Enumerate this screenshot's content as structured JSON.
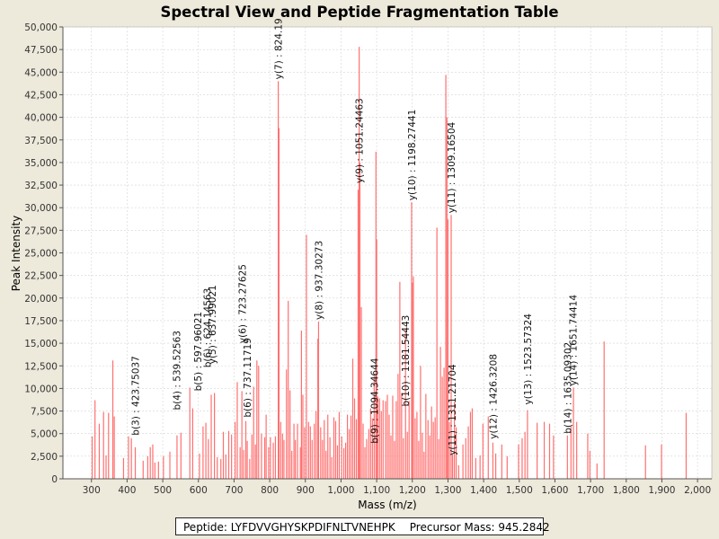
{
  "chart_data": {
    "type": "bar",
    "title": "Spectral View and Peptide Fragmentation Table",
    "xlabel": "Mass (m/z)",
    "ylabel": "Peak Intensity",
    "xlim": [
      220,
      2040
    ],
    "ylim": [
      0,
      50000
    ],
    "x_ticks": [
      300,
      400,
      500,
      600,
      700,
      800,
      900,
      1000,
      1100,
      1200,
      1300,
      1400,
      1500,
      1600,
      1700,
      1800,
      1900,
      2000
    ],
    "x_tick_labels": [
      "300",
      "400",
      "500",
      "600",
      "700",
      "800",
      "900",
      "1,000",
      "1,100",
      "1,200",
      "1,300",
      "1,400",
      "1,500",
      "1,600",
      "1,700",
      "1,800",
      "1,900",
      "2,000"
    ],
    "y_ticks": [
      0,
      2500,
      5000,
      7500,
      10000,
      12500,
      15000,
      17500,
      20000,
      22500,
      25000,
      27500,
      30000,
      32500,
      35000,
      37500,
      40000,
      42500,
      45000,
      47500,
      50000
    ],
    "y_tick_labels": [
      "0",
      "2,500",
      "5,000",
      "7,500",
      "10,000",
      "12,500",
      "15,000",
      "17,500",
      "20,000",
      "22,500",
      "25,000",
      "27,500",
      "30,000",
      "32,500",
      "35,000",
      "37,500",
      "40,000",
      "42,500",
      "45,000",
      "47,500",
      "50,000"
    ],
    "grid": true,
    "series": [
      {
        "name": "Peaks",
        "color": "#ff7070",
        "points": [
          [
            302,
            4700
          ],
          [
            310,
            8700
          ],
          [
            322,
            6100
          ],
          [
            334,
            7400
          ],
          [
            341,
            2600
          ],
          [
            348,
            7300
          ],
          [
            360,
            13100
          ],
          [
            364,
            6900
          ],
          [
            390,
            2300
          ],
          [
            404,
            4700
          ],
          [
            412,
            4500
          ],
          [
            423,
            3500
          ],
          [
            445,
            2000
          ],
          [
            458,
            2500
          ],
          [
            465,
            3500
          ],
          [
            472,
            3800
          ],
          [
            478,
            1800
          ],
          [
            488,
            1900
          ],
          [
            502,
            2500
          ],
          [
            520,
            3000
          ],
          [
            540,
            4800
          ],
          [
            551,
            5100
          ],
          [
            576,
            10100
          ],
          [
            584,
            7800
          ],
          [
            603,
            2800
          ],
          [
            613,
            5800
          ],
          [
            621,
            6200
          ],
          [
            628,
            4400
          ],
          [
            636,
            9300
          ],
          [
            645,
            9500
          ],
          [
            653,
            2400
          ],
          [
            663,
            2200
          ],
          [
            670,
            5200
          ],
          [
            677,
            2700
          ],
          [
            685,
            5300
          ],
          [
            693,
            4900
          ],
          [
            703,
            6300
          ],
          [
            709,
            10700
          ],
          [
            717,
            3500
          ],
          [
            722,
            9700
          ],
          [
            727,
            3200
          ],
          [
            733,
            6400
          ],
          [
            737,
            4200
          ],
          [
            744,
            2200
          ],
          [
            750,
            4900
          ],
          [
            755,
            10200
          ],
          [
            760,
            3800
          ],
          [
            764,
            13100
          ],
          [
            769,
            12500
          ],
          [
            777,
            5000
          ],
          [
            786,
            4600
          ],
          [
            790,
            7100
          ],
          [
            797,
            3500
          ],
          [
            802,
            4600
          ],
          [
            810,
            4000
          ],
          [
            816,
            4700
          ],
          [
            824,
            44000
          ],
          [
            826,
            38800
          ],
          [
            831,
            6300
          ],
          [
            836,
            5000
          ],
          [
            840,
            4300
          ],
          [
            847,
            12100
          ],
          [
            852,
            19700
          ],
          [
            857,
            9800
          ],
          [
            862,
            3100
          ],
          [
            868,
            6100
          ],
          [
            872,
            4300
          ],
          [
            878,
            6100
          ],
          [
            886,
            3500
          ],
          [
            889,
            16400
          ],
          [
            893,
            9300
          ],
          [
            898,
            5700
          ],
          [
            903,
            27000
          ],
          [
            909,
            6300
          ],
          [
            914,
            5800
          ],
          [
            919,
            4300
          ],
          [
            925,
            6100
          ],
          [
            930,
            7500
          ],
          [
            935,
            15500
          ],
          [
            937,
            17400
          ],
          [
            943,
            5700
          ],
          [
            948,
            4300
          ],
          [
            953,
            6500
          ],
          [
            958,
            3100
          ],
          [
            963,
            7100
          ],
          [
            969,
            4600
          ],
          [
            974,
            2400
          ],
          [
            980,
            6800
          ],
          [
            985,
            6400
          ],
          [
            990,
            3700
          ],
          [
            995,
            7400
          ],
          [
            1002,
            4700
          ],
          [
            1008,
            3400
          ],
          [
            1013,
            4000
          ],
          [
            1018,
            7100
          ],
          [
            1023,
            5500
          ],
          [
            1028,
            7000
          ],
          [
            1033,
            13300
          ],
          [
            1038,
            8900
          ],
          [
            1043,
            6600
          ],
          [
            1048,
            32000
          ],
          [
            1051,
            47800
          ],
          [
            1053,
            35000
          ],
          [
            1057,
            19000
          ],
          [
            1062,
            6100
          ],
          [
            1067,
            3500
          ],
          [
            1072,
            4400
          ],
          [
            1078,
            5500
          ],
          [
            1083,
            7800
          ],
          [
            1088,
            6700
          ],
          [
            1093,
            11400
          ],
          [
            1098,
            36200
          ],
          [
            1100,
            26500
          ],
          [
            1103,
            9100
          ],
          [
            1108,
            8900
          ],
          [
            1113,
            7500
          ],
          [
            1118,
            8700
          ],
          [
            1125,
            8600
          ],
          [
            1130,
            9300
          ],
          [
            1135,
            7100
          ],
          [
            1140,
            4800
          ],
          [
            1145,
            9200
          ],
          [
            1150,
            4200
          ],
          [
            1155,
            8600
          ],
          [
            1160,
            11600
          ],
          [
            1165,
            21800
          ],
          [
            1170,
            9500
          ],
          [
            1175,
            4500
          ],
          [
            1181,
            16600
          ],
          [
            1186,
            5200
          ],
          [
            1191,
            8600
          ],
          [
            1198,
            30600
          ],
          [
            1200,
            21700
          ],
          [
            1203,
            22400
          ],
          [
            1208,
            6700
          ],
          [
            1213,
            7400
          ],
          [
            1218,
            4200
          ],
          [
            1223,
            12500
          ],
          [
            1228,
            5100
          ],
          [
            1233,
            3000
          ],
          [
            1238,
            9400
          ],
          [
            1244,
            6500
          ],
          [
            1249,
            4800
          ],
          [
            1254,
            8000
          ],
          [
            1259,
            6300
          ],
          [
            1264,
            6800
          ],
          [
            1269,
            27800
          ],
          [
            1274,
            4400
          ],
          [
            1279,
            14600
          ],
          [
            1284,
            11300
          ],
          [
            1289,
            12300
          ],
          [
            1294,
            44700
          ],
          [
            1297,
            40000
          ],
          [
            1300,
            28700
          ],
          [
            1304,
            6300
          ],
          [
            1309,
            29200
          ],
          [
            1313,
            2700
          ],
          [
            1318,
            8500
          ],
          [
            1323,
            5700
          ],
          [
            1330,
            1500
          ],
          [
            1342,
            3800
          ],
          [
            1350,
            4500
          ],
          [
            1357,
            5800
          ],
          [
            1363,
            7400
          ],
          [
            1368,
            7800
          ],
          [
            1378,
            2300
          ],
          [
            1390,
            2600
          ],
          [
            1398,
            6100
          ],
          [
            1413,
            6900
          ],
          [
            1426,
            4000
          ],
          [
            1434,
            2800
          ],
          [
            1451,
            3800
          ],
          [
            1466,
            2500
          ],
          [
            1498,
            3800
          ],
          [
            1508,
            4500
          ],
          [
            1516,
            5200
          ],
          [
            1523,
            7600
          ],
          [
            1550,
            6200
          ],
          [
            1570,
            6300
          ],
          [
            1585,
            6100
          ],
          [
            1596,
            4800
          ],
          [
            1635,
            4800
          ],
          [
            1645,
            5800
          ],
          [
            1652,
            10100
          ],
          [
            1661,
            6300
          ],
          [
            1692,
            5000
          ],
          [
            1698,
            3100
          ],
          [
            1718,
            1700
          ],
          [
            1738,
            15200
          ],
          [
            1854,
            3700
          ],
          [
            1899,
            3800
          ],
          [
            1968,
            7300
          ]
        ]
      }
    ],
    "annotations": [
      {
        "label": "y(7) : 824.19",
        "x": 824,
        "y": 44000
      },
      {
        "label": "y(9) : 1051.24463",
        "x": 1051,
        "y": 32500
      },
      {
        "label": "y(10) : 1198.27441",
        "x": 1198,
        "y": 30600
      },
      {
        "label": "y(11) : 1309.16504",
        "x": 1309,
        "y": 29200
      },
      {
        "label": "y(8) : 937.30273",
        "x": 937,
        "y": 17400
      },
      {
        "label": "y(6) : 723.27625",
        "x": 723,
        "y": 14800
      },
      {
        "label": "b(6) : 624.14563",
        "x": 624,
        "y": 12100
      },
      {
        "label": "y(5) : 637.99021",
        "x": 638,
        "y": 12500
      },
      {
        "label": "b(5) : 597.96021",
        "x": 598,
        "y": 9500
      },
      {
        "label": "b(3) : 423.75037",
        "x": 423,
        "y": 4600
      },
      {
        "label": "b(4) : 539.52563",
        "x": 539,
        "y": 7400
      },
      {
        "label": "b(6) : 737.11719",
        "x": 737,
        "y": 6600
      },
      {
        "label": "b(10) : 1181.54443",
        "x": 1181,
        "y": 7800
      },
      {
        "label": "b(9) : 1094.34644",
        "x": 1094,
        "y": 3700
      },
      {
        "label": "y(11) : 1311.21704",
        "x": 1311,
        "y": 2400
      },
      {
        "label": "y(12) : 1426.3208",
        "x": 1426,
        "y": 4200
      },
      {
        "label": "y(13) : 1523.57324",
        "x": 1523,
        "y": 8000
      },
      {
        "label": "b(14) : 1635.09302",
        "x": 1635,
        "y": 4800
      },
      {
        "label": "y(14) : 1651.74414",
        "x": 1651,
        "y": 10100
      }
    ]
  },
  "footer": {
    "peptide_text": "Peptide: LYFDVVGHYSKPDIFNLTVNEHPK",
    "precursor_text": "Precursor Mass: 945.2842"
  },
  "colors": {
    "peak": "#ff7070",
    "grid": "#d4d4d4",
    "background": "#ede9db",
    "plot_background": "#ffffff"
  }
}
